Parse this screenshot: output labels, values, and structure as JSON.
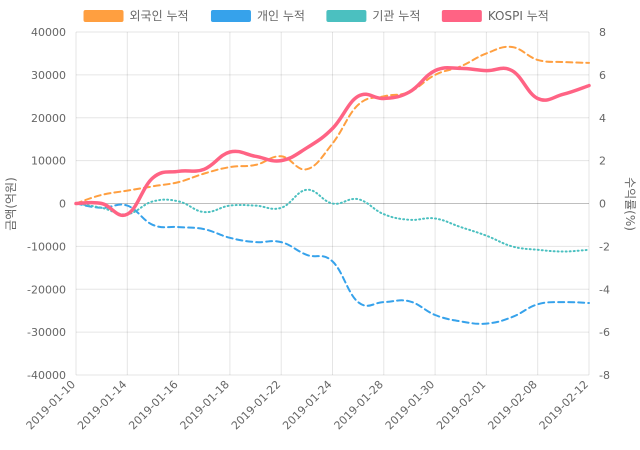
{
  "chart_data": {
    "type": "line",
    "x": [
      "2019-01-10",
      "2019-01-11",
      "2019-01-14",
      "2019-01-15",
      "2019-01-16",
      "2019-01-17",
      "2019-01-18",
      "2019-01-21",
      "2019-01-22",
      "2019-01-23",
      "2019-01-24",
      "2019-01-25",
      "2019-01-28",
      "2019-01-29",
      "2019-01-30",
      "2019-01-31",
      "2019-02-01",
      "2019-02-07",
      "2019-02-08",
      "2019-02-11",
      "2019-02-12"
    ],
    "xticks": [
      "2019-01-10",
      "2019-01-14",
      "2019-01-16",
      "2019-01-18",
      "2019-01-22",
      "2019-01-24",
      "2019-01-28",
      "2019-01-30",
      "2019-02-01",
      "2019-02-08",
      "2019-02-12"
    ],
    "ylabel": "금액(억원)",
    "y2label": "수익률(%)",
    "ylim": [
      -40000,
      40000
    ],
    "yticks": [
      -40000,
      -30000,
      -20000,
      -10000,
      0,
      10000,
      20000,
      30000,
      40000
    ],
    "y2lim": [
      -8,
      8
    ],
    "y2ticks": [
      -8,
      -6,
      -4,
      -2,
      0,
      2,
      4,
      6,
      8
    ],
    "grid": true,
    "legend_position": "top",
    "series": [
      {
        "name": "외국인 누적",
        "axis": "left",
        "color": "#ff9f40",
        "style": "dashed",
        "values": [
          0,
          2000,
          3000,
          4000,
          5000,
          7000,
          8500,
          9000,
          11000,
          8000,
          14000,
          23000,
          25000,
          26000,
          30000,
          32000,
          35000,
          36500,
          33500,
          33000,
          32800
        ]
      },
      {
        "name": "개인 누적",
        "axis": "left",
        "color": "#36a2eb",
        "style": "dashed",
        "values": [
          0,
          -1000,
          -500,
          -5000,
          -5500,
          -6000,
          -8000,
          -9000,
          -9000,
          -12000,
          -13500,
          -23000,
          -23000,
          -22800,
          -26000,
          -27500,
          -28000,
          -26500,
          -23500,
          -23000,
          -23200
        ]
      },
      {
        "name": "기관 누적",
        "axis": "left",
        "color": "#4bc0c0",
        "style": "dotted",
        "values": [
          0,
          -1000,
          -2500,
          500,
          500,
          -2000,
          -500,
          -500,
          -1000,
          3200,
          0,
          1000,
          -2500,
          -3800,
          -3500,
          -5500,
          -7500,
          -10000,
          -10800,
          -11200,
          -10800
        ]
      },
      {
        "name": "KOSPI 누적",
        "axis": "right",
        "color": "#ff6384",
        "style": "solid",
        "values": [
          0,
          0,
          -0.5,
          1.2,
          1.5,
          1.6,
          2.4,
          2.2,
          2.0,
          2.6,
          3.5,
          5.0,
          4.9,
          5.2,
          6.2,
          6.3,
          6.2,
          6.2,
          4.9,
          5.1,
          5.5
        ]
      }
    ]
  }
}
